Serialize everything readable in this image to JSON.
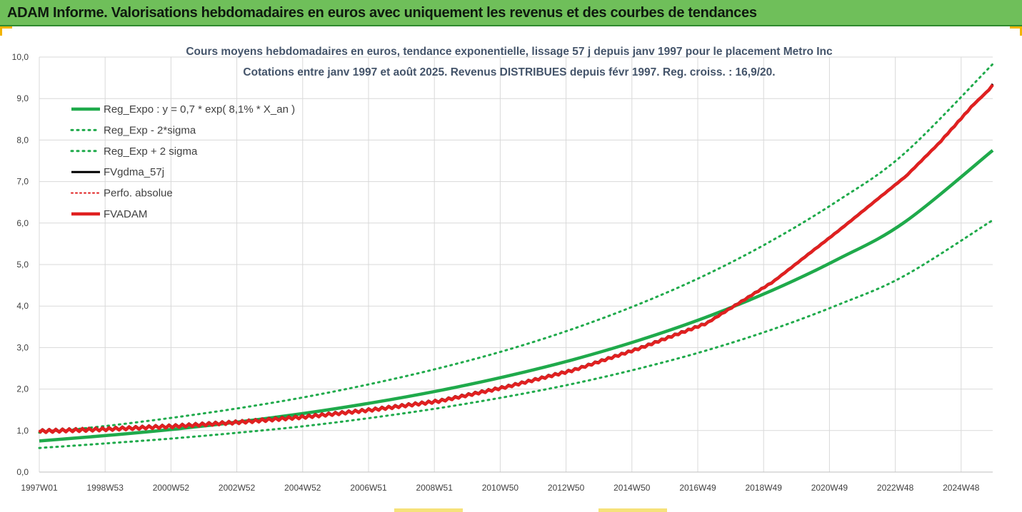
{
  "header": {
    "title": "ADAM Informe. Valorisations hebdomadaires en euros avec uniquement les revenus et des courbes de tendances"
  },
  "colors": {
    "banner": "#6fbf5a",
    "reg_expo": "#1faa4b",
    "fvgdma": "#000000",
    "perfo": "#e02020",
    "fvadam": "#e02020",
    "gridline": "#d9d9d9",
    "corner_accent": "#f2b400"
  },
  "chart_data": {
    "type": "line",
    "title": "Cours moyens hebdomadaires en euros, tendance exponentielle, lissage 57 j depuis janv 1997 pour le placement Metro Inc",
    "subtitle": "Cotations entre janv 1997 et août 2025.  Revenus DISTRIBUES depuis févr 1997.  Reg. croiss. : 16,9/20.",
    "xlabel": "",
    "ylabel": "",
    "ylim": [
      0,
      10
    ],
    "xlim": [
      1997.0,
      2025.65
    ],
    "y_ticks": [
      "0,0",
      "1,0",
      "2,0",
      "3,0",
      "4,0",
      "5,0",
      "6,0",
      "7,0",
      "8,0",
      "9,0",
      "10,0"
    ],
    "x_tick_labels": [
      "1997W01",
      "1998W53",
      "2000W52",
      "2002W52",
      "2004W52",
      "2006W51",
      "2008W51",
      "2010W50",
      "2012W50",
      "2014W50",
      "2016W49",
      "2018W49",
      "2020W49",
      "2022W48",
      "2024W48"
    ],
    "grid": true,
    "legend_position": "top-left",
    "series": [
      {
        "name": "Reg_Expo : y = 0,7 * exp( 8,1% *  X_an )",
        "style": "solid",
        "x": [
          1997,
          1999,
          2001,
          2003,
          2005,
          2007,
          2009,
          2011,
          2013,
          2015,
          2017,
          2019,
          2021,
          2023,
          2025.65
        ],
        "values": [
          0.75,
          0.88,
          1.03,
          1.21,
          1.42,
          1.67,
          1.96,
          2.3,
          2.7,
          3.17,
          3.72,
          4.37,
          5.13,
          6.02,
          7.75
        ]
      },
      {
        "name": "Reg_Exp - 2*sigma",
        "style": "dotted",
        "x": [
          1997,
          1999,
          2001,
          2003,
          2005,
          2007,
          2009,
          2011,
          2013,
          2015,
          2017,
          2019,
          2021,
          2023,
          2025.65
        ],
        "values": [
          0.58,
          0.69,
          0.81,
          0.95,
          1.11,
          1.31,
          1.54,
          1.81,
          2.12,
          2.49,
          2.92,
          3.43,
          4.03,
          4.73,
          6.07
        ]
      },
      {
        "name": "Reg_Exp + 2 sigma",
        "style": "dotted",
        "x": [
          1997,
          1999,
          2001,
          2003,
          2005,
          2007,
          2009,
          2011,
          2013,
          2015,
          2017,
          2019,
          2021,
          2023,
          2025.65
        ],
        "values": [
          0.95,
          1.11,
          1.31,
          1.54,
          1.81,
          2.13,
          2.5,
          2.93,
          3.44,
          4.04,
          4.74,
          5.57,
          6.54,
          7.68,
          9.83
        ]
      },
      {
        "name": "FVgdma_57j",
        "style": "solid",
        "x": [
          1997,
          1999,
          2001,
          2003,
          2005,
          2007,
          2009,
          2011,
          2013,
          2015,
          2017,
          2019,
          2021,
          2023,
          2024,
          2025,
          2025.65
        ],
        "values": [
          1.0,
          1.05,
          1.12,
          1.22,
          1.35,
          1.52,
          1.73,
          2.07,
          2.47,
          3.0,
          3.6,
          4.6,
          5.85,
          7.15,
          7.95,
          8.85,
          9.35
        ]
      },
      {
        "name": "Perfo. absolue",
        "style": "dotted",
        "x": [
          1997,
          1998
        ],
        "values": [
          1.0,
          1.02
        ]
      },
      {
        "name": "FVADAM",
        "style": "solid",
        "x": [
          1997,
          1999,
          2001,
          2003,
          2005,
          2007,
          2009,
          2011,
          2013,
          2015,
          2017,
          2019,
          2021,
          2023,
          2024,
          2025,
          2025.65
        ],
        "values": [
          1.0,
          1.05,
          1.12,
          1.22,
          1.35,
          1.52,
          1.73,
          2.07,
          2.47,
          3.0,
          3.6,
          4.6,
          5.85,
          7.15,
          7.95,
          8.85,
          9.35
        ]
      }
    ]
  }
}
